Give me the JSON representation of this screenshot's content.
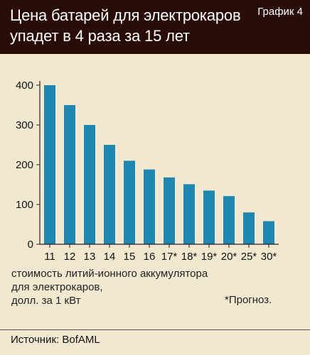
{
  "header": {
    "title_line1": "Цена батарей для электрокаров",
    "title_line2": "упадет в 4 раза за 15 лет",
    "figure_label": "График 4"
  },
  "caption": {
    "line1": "стоимость литий-ионного аккумулятора",
    "line2": "для электрокаров,",
    "line3": "долл. за 1 кВт"
  },
  "footnote": "*Прогноз.",
  "source": "Источник: BofAML",
  "colors": {
    "bar": "#1e87b0",
    "header_bg": "#2a0c06",
    "page_bg": "#f2e8cf",
    "axis": "#222222"
  },
  "chart_data": {
    "type": "bar",
    "title": "Цена батарей для электрокаров упадет в 4 раза за 15 лет",
    "categories": [
      "11",
      "12",
      "13",
      "14",
      "15",
      "16",
      "17*",
      "18*",
      "19*",
      "20*",
      "25*",
      "30*"
    ],
    "values": [
      400,
      350,
      300,
      250,
      210,
      188,
      168,
      151,
      135,
      121,
      80,
      58
    ],
    "ylabel": "стоимость литий-ионного аккумулятора для электрокаров, долл. за 1 кВт",
    "xlabel": "",
    "ylim": [
      0,
      400
    ],
    "yticks": [
      0,
      100,
      200,
      300,
      400
    ],
    "grid": false,
    "legend": "none"
  }
}
